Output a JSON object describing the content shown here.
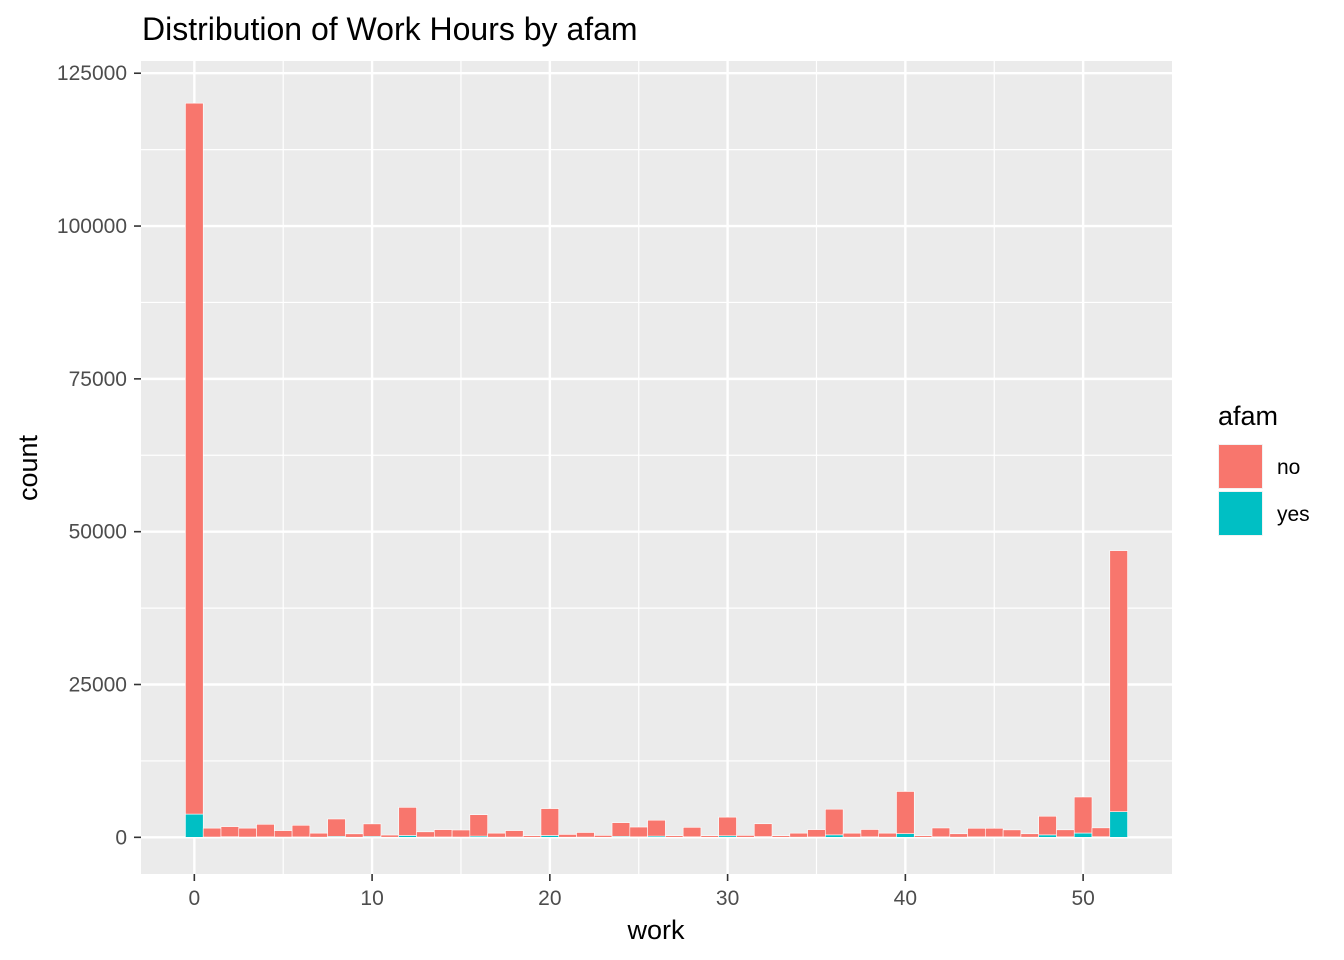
{
  "chart_data": {
    "type": "bar",
    "stacked": true,
    "title": "Distribution of Work Hours by afam",
    "xlabel": "work",
    "ylabel": "count",
    "xlim": [
      -3,
      55
    ],
    "ylim": [
      -6000,
      127000
    ],
    "x_ticks": [
      0,
      10,
      20,
      30,
      40,
      50
    ],
    "y_ticks": [
      0,
      25000,
      50000,
      75000,
      100000,
      125000
    ],
    "grid": true,
    "legend": {
      "title": "afam",
      "position": "right"
    },
    "bin_width": 1,
    "x": [
      0,
      1,
      2,
      3,
      4,
      5,
      6,
      7,
      8,
      9,
      10,
      11,
      12,
      13,
      14,
      15,
      16,
      17,
      18,
      19,
      20,
      21,
      22,
      23,
      24,
      25,
      26,
      27,
      28,
      29,
      30,
      31,
      32,
      33,
      34,
      35,
      36,
      37,
      38,
      39,
      40,
      41,
      42,
      43,
      44,
      45,
      46,
      47,
      48,
      49,
      50,
      51,
      52
    ],
    "series": [
      {
        "name": "no",
        "color": "#F8766D",
        "values": [
          116300,
          1450,
          1650,
          1450,
          2050,
          1050,
          1900,
          650,
          2850,
          550,
          2050,
          350,
          4600,
          850,
          1200,
          1150,
          3500,
          650,
          1050,
          250,
          4400,
          450,
          750,
          300,
          2250,
          1600,
          2600,
          250,
          1550,
          250,
          3050,
          300,
          2100,
          250,
          650,
          1200,
          4200,
          650,
          1200,
          650,
          6900,
          250,
          1450,
          550,
          1400,
          1400,
          1150,
          550,
          3050,
          1150,
          5900,
          1450,
          42700
        ]
      },
      {
        "name": "yes",
        "color": "#00BFC4",
        "values": [
          3800,
          50,
          100,
          50,
          80,
          50,
          70,
          30,
          150,
          20,
          150,
          20,
          300,
          50,
          60,
          50,
          200,
          30,
          50,
          10,
          300,
          20,
          40,
          10,
          150,
          80,
          200,
          10,
          80,
          10,
          250,
          10,
          120,
          10,
          30,
          60,
          400,
          30,
          80,
          30,
          600,
          10,
          80,
          30,
          80,
          80,
          70,
          30,
          400,
          80,
          700,
          100,
          4200
        ]
      }
    ]
  }
}
